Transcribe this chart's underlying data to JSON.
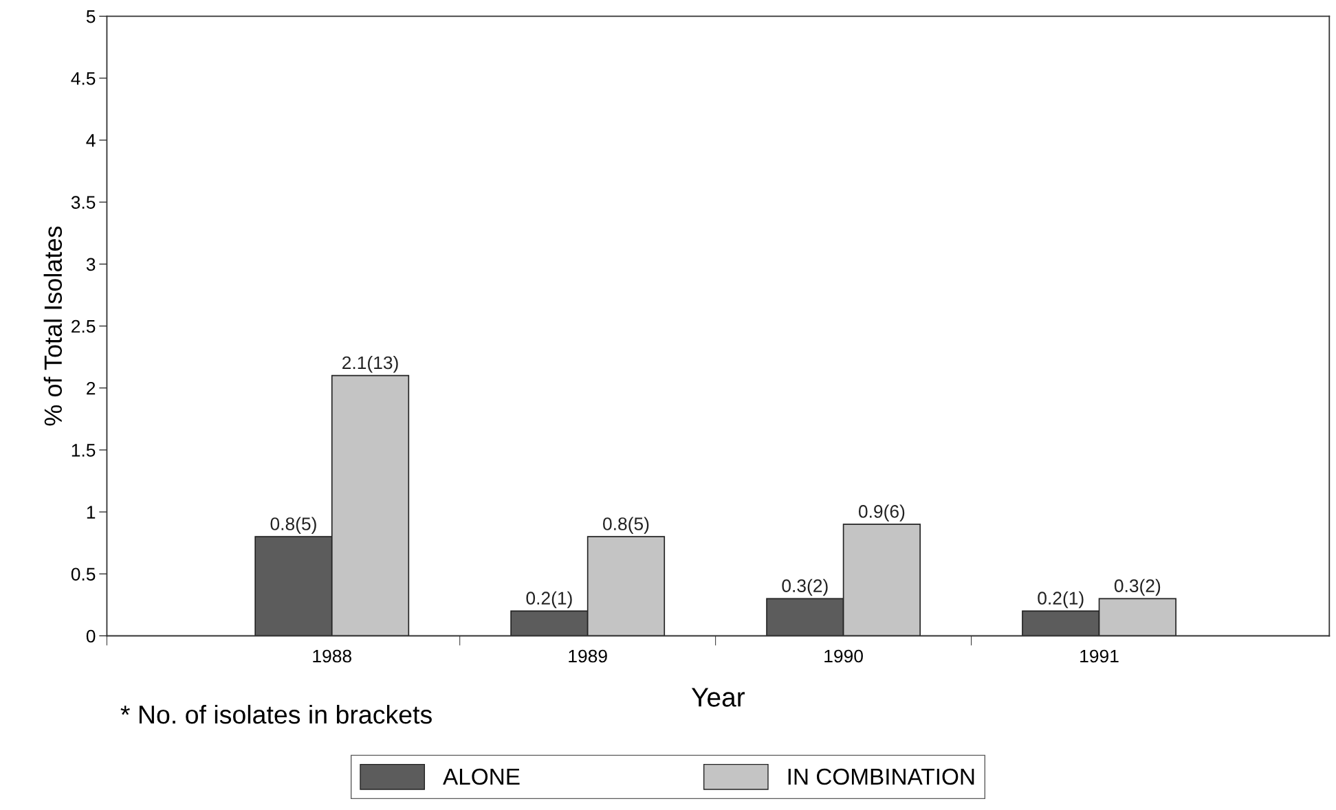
{
  "chart_data": {
    "type": "bar",
    "xlabel": "Year",
    "ylabel": "% of Total Isolates",
    "categories": [
      "1988",
      "1989",
      "1990",
      "1991"
    ],
    "series": [
      {
        "name": "ALONE",
        "color": "#5c5c5c",
        "values": [
          0.8,
          0.2,
          0.3,
          0.2
        ],
        "value_labels": [
          "0.8(5)",
          "0.2(1)",
          "0.3(2)",
          "0.2(1)"
        ]
      },
      {
        "name": "IN COMBINATION",
        "color": "#c4c4c4",
        "values": [
          2.1,
          0.8,
          0.9,
          0.3
        ],
        "value_labels": [
          "2.1(13)",
          "0.8(5)",
          "0.9(6)",
          "0.3(2)"
        ]
      }
    ],
    "ylim": [
      0,
      5
    ],
    "yticks": [
      0,
      0.5,
      1,
      1.5,
      2,
      2.5,
      3,
      3.5,
      4,
      4.5,
      5
    ],
    "annotations": [
      "* No. of isolates in brackets"
    ],
    "legend": "bottom"
  }
}
